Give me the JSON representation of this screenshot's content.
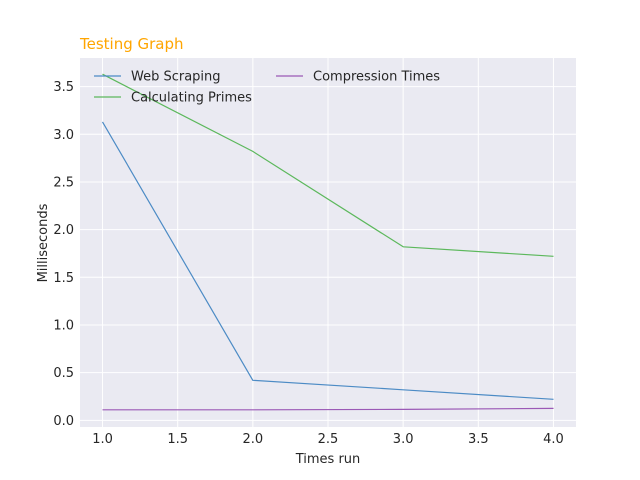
{
  "chart_data": {
    "type": "line",
    "title": "Testing Graph",
    "title_color": "#FFA500",
    "xlabel": "Times run",
    "ylabel": "Milliseconds",
    "x": [
      1.0,
      2.0,
      3.0,
      4.0
    ],
    "xlim": [
      0.85,
      4.15
    ],
    "ylim": [
      -0.07,
      3.8
    ],
    "xticks": [
      1.0,
      1.5,
      2.0,
      2.5,
      3.0,
      3.5,
      4.0
    ],
    "xtick_labels": [
      "1.0",
      "1.5",
      "2.0",
      "2.5",
      "3.0",
      "3.5",
      "4.0"
    ],
    "yticks": [
      0.0,
      0.5,
      1.0,
      1.5,
      2.0,
      2.5,
      3.0,
      3.5
    ],
    "ytick_labels": [
      "0.0",
      "0.5",
      "1.0",
      "1.5",
      "2.0",
      "2.5",
      "3.0",
      "3.5"
    ],
    "grid": true,
    "legend_position": "top-left",
    "plot_background": "#EAEAF2",
    "series": [
      {
        "name": "Web Scraping",
        "color": "#4C8BC5",
        "values": [
          3.13,
          0.42,
          0.32,
          0.22
        ]
      },
      {
        "name": "Calculating Primes",
        "color": "#5CB85C",
        "values": [
          3.63,
          2.82,
          1.82,
          1.72
        ]
      },
      {
        "name": "Compression Times",
        "color": "#9B59B6",
        "values": [
          0.11,
          0.11,
          0.115,
          0.125
        ]
      }
    ]
  }
}
